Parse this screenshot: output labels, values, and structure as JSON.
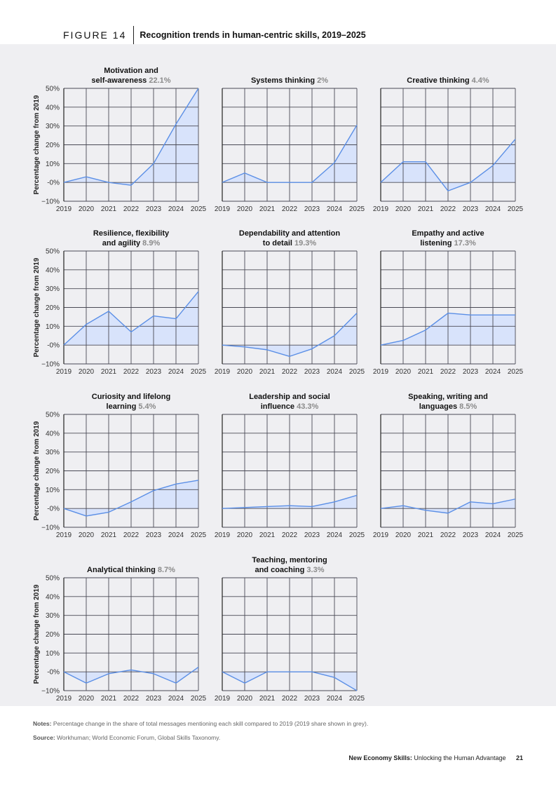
{
  "header": {
    "figure_label": "FIGURE 14",
    "title": "Recognition trends in human-centric skills, 2019–2025"
  },
  "colors": {
    "line": "#5b8fe6",
    "fill": "#d8e3fb",
    "grid": "#4a4a55",
    "share": "#8a8a8a",
    "panel": "#efeff2"
  },
  "chart_data": [
    {
      "type": "area",
      "title_lines": [
        "Motivation and",
        "self-awareness"
      ],
      "share": "22.1%",
      "ylabel": "Percentage change from 2019",
      "x": [
        "2019",
        "2020",
        "2021",
        "2022",
        "2023",
        "2024",
        "2025"
      ],
      "values": [
        0,
        3,
        0,
        -1.5,
        10,
        31,
        50
      ],
      "ylim": [
        -10,
        50
      ],
      "yticks": [
        "50%",
        "40%",
        "30%",
        "20%",
        "10%",
        "-0%",
        "−10%"
      ]
    },
    {
      "type": "area",
      "title_lines": [
        "Systems thinking"
      ],
      "share": "2%",
      "ylabel": "",
      "x": [
        "2019",
        "2020",
        "2021",
        "2022",
        "2023",
        "2024",
        "2025"
      ],
      "values": [
        0,
        5,
        0,
        0,
        0,
        10.5,
        30.5
      ],
      "ylim": [
        -10,
        50
      ],
      "yticks": []
    },
    {
      "type": "area",
      "title_lines": [
        "Creative thinking"
      ],
      "share": "4.4%",
      "ylabel": "",
      "x": [
        "2019",
        "2020",
        "2021",
        "2022",
        "2023",
        "2024",
        "2025"
      ],
      "values": [
        0,
        11,
        11,
        -4.5,
        0,
        9,
        23
      ],
      "ylim": [
        -10,
        50
      ],
      "yticks": []
    },
    {
      "type": "area",
      "title_lines": [
        "Resilience, flexibility",
        "and agility"
      ],
      "share": "8.9%",
      "ylabel": "Percentage change from 2019",
      "x": [
        "2019",
        "2020",
        "2021",
        "2022",
        "2023",
        "2024",
        "2025"
      ],
      "values": [
        0,
        11,
        18,
        7,
        15.5,
        14,
        28.5
      ],
      "ylim": [
        -10,
        50
      ],
      "yticks": [
        "50%",
        "40%",
        "30%",
        "20%",
        "10%",
        "-0%",
        "−10%"
      ]
    },
    {
      "type": "area",
      "title_lines": [
        "Dependability and attention",
        "to detail"
      ],
      "share": "19.3%",
      "ylabel": "",
      "x": [
        "2019",
        "2020",
        "2021",
        "2022",
        "2023",
        "2024",
        "2025"
      ],
      "values": [
        0,
        -1,
        -2.5,
        -6,
        -2,
        5,
        17
      ],
      "ylim": [
        -10,
        50
      ],
      "yticks": []
    },
    {
      "type": "area",
      "title_lines": [
        "Empathy and active",
        "listening"
      ],
      "share": "17.3%",
      "ylabel": "",
      "x": [
        "2019",
        "2020",
        "2021",
        "2022",
        "2023",
        "2024",
        "2025"
      ],
      "values": [
        0,
        2.5,
        8,
        17,
        16,
        16,
        16
      ],
      "ylim": [
        -10,
        50
      ],
      "yticks": []
    },
    {
      "type": "area",
      "title_lines": [
        "Curiosity and lifelong",
        "learning"
      ],
      "share": "5.4%",
      "ylabel": "Percentage change from 2019",
      "x": [
        "2019",
        "2020",
        "2021",
        "2022",
        "2023",
        "2024",
        "2025"
      ],
      "values": [
        0,
        -4,
        -2,
        3.5,
        9.5,
        13,
        15
      ],
      "ylim": [
        -10,
        50
      ],
      "yticks": [
        "50%",
        "40%",
        "30%",
        "20%",
        "10%",
        "-0%",
        "−10%"
      ]
    },
    {
      "type": "area",
      "title_lines": [
        "Leadership and social",
        "influence"
      ],
      "share": "43.3%",
      "ylabel": "",
      "x": [
        "2019",
        "2020",
        "2021",
        "2022",
        "2023",
        "2024",
        "2025"
      ],
      "values": [
        0,
        0.5,
        1,
        1.5,
        1,
        3.5,
        7
      ],
      "ylim": [
        -10,
        50
      ],
      "yticks": []
    },
    {
      "type": "area",
      "title_lines": [
        "Speaking, writing and",
        "languages"
      ],
      "share": "8.5%",
      "ylabel": "",
      "x": [
        "2019",
        "2020",
        "2021",
        "2022",
        "2023",
        "2024",
        "2025"
      ],
      "values": [
        0,
        1.5,
        -1,
        -2.5,
        3.5,
        2.5,
        5
      ],
      "ylim": [
        -10,
        50
      ],
      "yticks": []
    },
    {
      "type": "area",
      "title_lines": [
        "Analytical thinking"
      ],
      "share": "8.7%",
      "ylabel": "Percentage change from 2019",
      "x": [
        "2019",
        "2020",
        "2021",
        "2022",
        "2023",
        "2024",
        "2025"
      ],
      "values": [
        0,
        -6,
        -1,
        1,
        -1,
        -6,
        2.5
      ],
      "ylim": [
        -10,
        50
      ],
      "yticks": [
        "50%",
        "40%",
        "30%",
        "20%",
        "10%",
        "-0%",
        "−10%"
      ]
    },
    {
      "type": "area",
      "title_lines": [
        "Teaching, mentoring",
        "and coaching"
      ],
      "share": "3.3%",
      "ylabel": "",
      "x": [
        "2019",
        "2020",
        "2021",
        "2022",
        "2023",
        "2024",
        "2025"
      ],
      "values": [
        0,
        -6,
        0,
        0,
        0,
        -3,
        -10
      ],
      "ylim": [
        -10,
        50
      ],
      "yticks": []
    }
  ],
  "notes": {
    "notes_label": "Notes:",
    "notes_text": "Percentage change in the share of total messages mentioning each skill compared to 2019 (2019 share shown in grey).",
    "source_label": "Source:",
    "source_text": "Workhuman; World Economic Forum, Global Skills Taxonomy."
  },
  "footer": {
    "report_bold": "New Economy Skills:",
    "report_rest": "Unlocking the Human Advantage",
    "page_number": "21"
  }
}
